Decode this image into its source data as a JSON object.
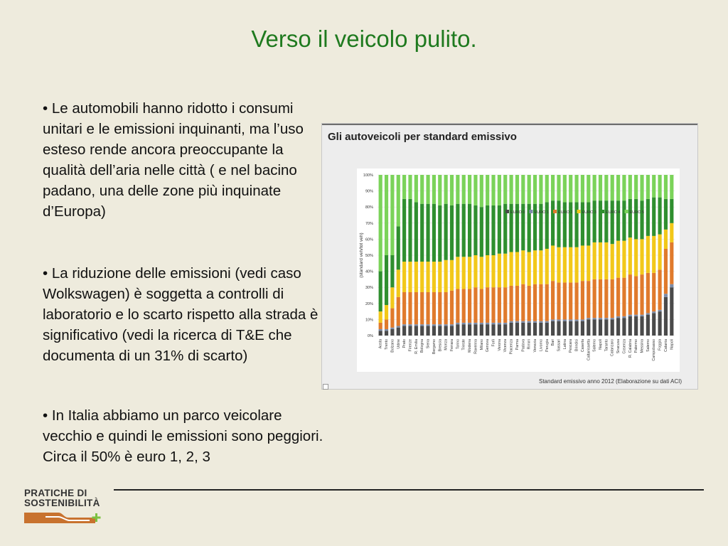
{
  "slide": {
    "title": "Verso il veicolo pulito.",
    "bullets": [
      "• Le automobili hanno ridotto i consumi unitari e le emissioni inquinanti, ma l’uso esteso rende ancora preoccupante la qualità dell’aria nelle città ( e nel bacino padano, una delle zone più inquinate d’Europa)",
      "• La riduzione delle emissioni  (vedi caso Wolkswagen)  è soggetta a controlli  di laboratorio e lo scarto rispetto alla strada è significativo (vedi la ricerca di T&E che documenta di un 31% di scarto)",
      "• In Italia abbiamo un parco veicolare vecchio e quindi le emissioni sono peggiori. Circa il 50% è euro 1, 2, 3"
    ]
  },
  "logo": {
    "line1": "PRATICHE DI",
    "line2": "SOSTENIBILITÀ"
  },
  "chart_data": {
    "type": "bar",
    "stacked": true,
    "title": "Gli autoveicoli per standard emissivo",
    "ylabel": "(standard veh/tot veh)",
    "ylim": [
      0,
      100
    ],
    "yticks": [
      "0%",
      "10%",
      "20%",
      "30%",
      "40%",
      "50%",
      "60%",
      "70%",
      "80%",
      "90%",
      "100%"
    ],
    "legend_position": "top-right",
    "source": "Standard emissivo anno 2012 (Elaborazione su dati ACI)",
    "categories": [
      "Aosta",
      "Trento",
      "Bolzano",
      "Udine",
      "Prato",
      "Firenze",
      "R. Emilia",
      "Bologna",
      "Siena",
      "Bergamo",
      "Brescia",
      "Monza",
      "Ferrara",
      "Torino",
      "Trieste",
      "Modena",
      "Ravenna",
      "Milano",
      "Genova",
      "Forlì",
      "Verona",
      "Vicenza",
      "Piacenza",
      "Parma",
      "Padova",
      "Rimini",
      "Venezia",
      "Livorno",
      "Perugia",
      "Bari",
      "Sassari",
      "Latina",
      "Pescara",
      "Brindisi",
      "Caserta",
      "Caltanissetta",
      "Salerno",
      "Napoli",
      "Taranto",
      "Catanzaro",
      "Siracusa",
      "Cosenza",
      "R. Calabria",
      "Palermo",
      "Messina",
      "Salerno",
      "Campobasso",
      "Foggia",
      "Catania",
      "Napoli"
    ],
    "series": [
      {
        "name": "EURO 0",
        "color": "#4a4a4a",
        "values": [
          3,
          3,
          4,
          5,
          6,
          6,
          6,
          6,
          6,
          6,
          6,
          6,
          6,
          7,
          7,
          7,
          7,
          7,
          7,
          7,
          7,
          7,
          8,
          8,
          8,
          8,
          8,
          8,
          8,
          9,
          9,
          9,
          9,
          9,
          9,
          10,
          10,
          10,
          10,
          10,
          11,
          11,
          12,
          12,
          12,
          13,
          14,
          15,
          24,
          30
        ]
      },
      {
        "name": "EURO 1",
        "color": "#7d8ca8",
        "values": [
          1,
          1,
          1,
          1,
          1,
          1,
          1,
          1,
          1,
          1,
          1,
          1,
          1,
          1,
          1,
          1,
          1,
          1,
          1,
          1,
          1,
          1,
          1,
          1,
          1,
          1,
          1,
          1,
          1,
          1,
          1,
          1,
          1,
          1,
          1,
          1,
          1,
          1,
          1,
          1,
          1,
          1,
          1,
          1,
          1,
          1,
          1,
          1,
          2,
          2
        ]
      },
      {
        "name": "EURO 2",
        "color": "#e07a2c",
        "values": [
          4,
          6,
          12,
          18,
          20,
          20,
          20,
          20,
          20,
          20,
          20,
          20,
          21,
          21,
          21,
          21,
          22,
          21,
          22,
          22,
          22,
          22,
          22,
          22,
          23,
          22,
          23,
          23,
          23,
          24,
          23,
          23,
          23,
          23,
          24,
          23,
          24,
          24,
          24,
          24,
          24,
          24,
          25,
          24,
          25,
          25,
          24,
          25,
          28,
          26
        ]
      },
      {
        "name": "EURO 3",
        "color": "#f2c81a",
        "values": [
          7,
          9,
          13,
          17,
          19,
          19,
          19,
          19,
          19,
          19,
          19,
          20,
          19,
          20,
          20,
          20,
          20,
          20,
          20,
          20,
          21,
          21,
          21,
          21,
          21,
          21,
          21,
          21,
          22,
          22,
          22,
          22,
          22,
          22,
          22,
          22,
          23,
          23,
          23,
          22,
          23,
          23,
          23,
          23,
          22,
          23,
          23,
          22,
          12,
          12
        ]
      },
      {
        "name": "EURO 4",
        "color": "#2f8f2f",
        "values": [
          25,
          31,
          20,
          27,
          39,
          39,
          37,
          36,
          36,
          36,
          35,
          35,
          34,
          33,
          33,
          33,
          31,
          31,
          31,
          31,
          30,
          31,
          30,
          30,
          29,
          30,
          29,
          29,
          29,
          28,
          29,
          28,
          28,
          28,
          27,
          27,
          26,
          26,
          26,
          27,
          25,
          25,
          24,
          25,
          24,
          23,
          24,
          23,
          19,
          15
        ]
      },
      {
        "name": "EURO 5",
        "color": "#7bd35a",
        "values": [
          60,
          50,
          50,
          32,
          15,
          15,
          17,
          18,
          18,
          18,
          19,
          18,
          19,
          18,
          18,
          18,
          19,
          20,
          19,
          19,
          19,
          18,
          18,
          18,
          18,
          18,
          18,
          18,
          17,
          16,
          16,
          17,
          17,
          17,
          17,
          17,
          16,
          16,
          16,
          16,
          16,
          16,
          15,
          15,
          16,
          15,
          14,
          14,
          15,
          15
        ]
      }
    ]
  }
}
